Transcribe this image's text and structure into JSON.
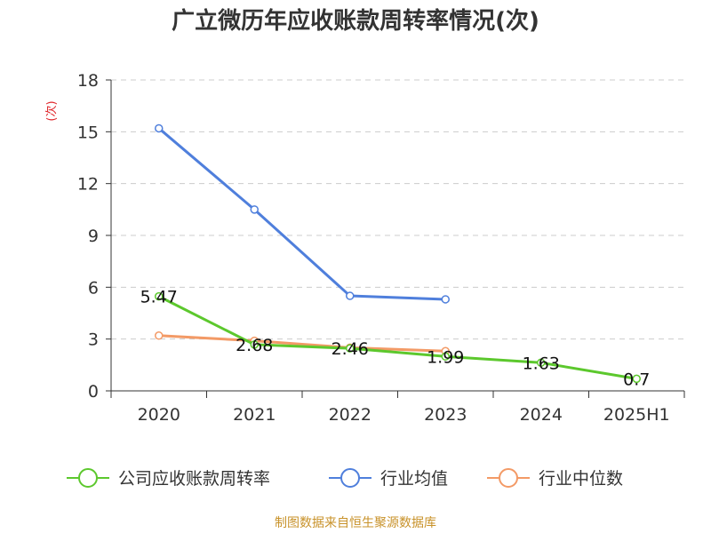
{
  "title": "广立微历年应收账款周转率情况(次)",
  "source": "制图数据来自恒生聚源数据库",
  "chart_data": {
    "type": "line",
    "title": "广立微历年应收账款周转率情况(次)",
    "ylabel": "(次)",
    "xlabel": "",
    "categories": [
      "2020",
      "2021",
      "2022",
      "2023",
      "2024",
      "2025H1"
    ],
    "y_ticks": [
      "0",
      "3",
      "6",
      "9",
      "12",
      "15",
      "18"
    ],
    "ylim": [
      0,
      18
    ],
    "grid": true,
    "legend_position": "bottom",
    "series": [
      {
        "name": "公司应收账款周转率",
        "color": "#5cc82d",
        "values": [
          5.47,
          2.68,
          2.46,
          1.99,
          1.63,
          0.7
        ],
        "labels": [
          "5.47",
          "2.68",
          "2.46",
          "1.99",
          "1.63",
          "0.7"
        ]
      },
      {
        "name": "行业均值",
        "color": "#4f7fdc",
        "values": [
          15.2,
          10.5,
          5.5,
          5.3,
          null,
          null
        ]
      },
      {
        "name": "行业中位数",
        "color": "#f39a66",
        "values": [
          3.2,
          2.9,
          2.5,
          2.3,
          null,
          null
        ]
      }
    ]
  }
}
